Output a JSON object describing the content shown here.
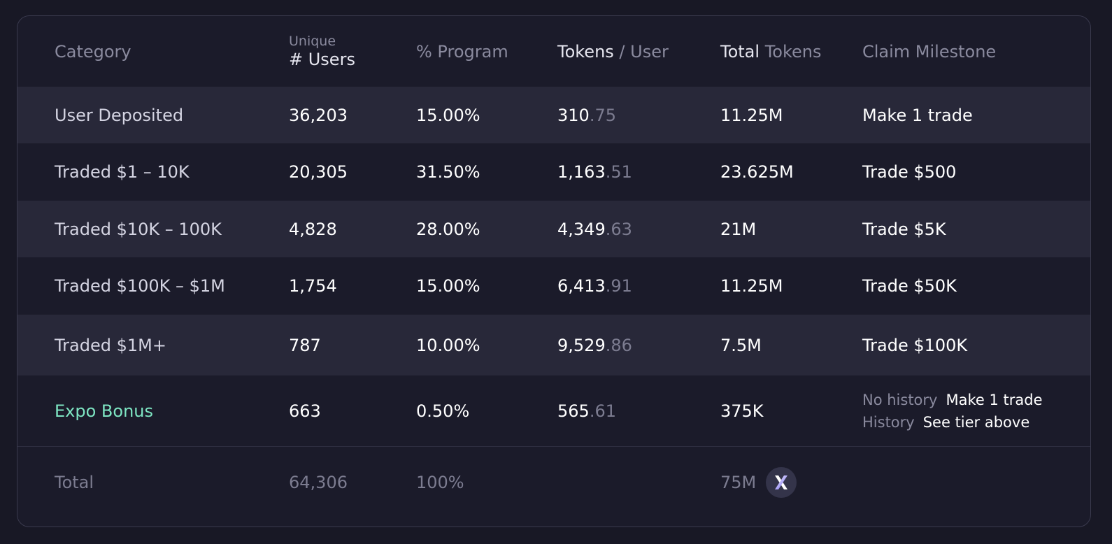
{
  "header": {
    "category": "Category",
    "users_small": "Unique",
    "users_big": "# Users",
    "program": "% Program",
    "tokens_user_a": "Tokens",
    "tokens_user_b": " / User",
    "total_tokens_a": "Total",
    "total_tokens_b": " Tokens",
    "milestone": "Claim Milestone"
  },
  "rows": [
    {
      "category": "User Deposited",
      "users": "36,203",
      "program": "15.00%",
      "tpu_int": "310",
      "tpu_dec": ".75",
      "total": "11.25M",
      "milestone": "Make 1 trade"
    },
    {
      "category": "Traded $1 – 10K",
      "users": "20,305",
      "program": "31.50%",
      "tpu_int": "1,163",
      "tpu_dec": ".51",
      "total": "23.625M",
      "milestone": "Trade $500"
    },
    {
      "category": "Traded $10K – 100K",
      "users": "4,828",
      "program": "28.00%",
      "tpu_int": "4,349",
      "tpu_dec": ".63",
      "total": "21M",
      "milestone": "Trade $5K"
    },
    {
      "category": "Traded $100K – $1M",
      "users": "1,754",
      "program": "15.00%",
      "tpu_int": "6,413",
      "tpu_dec": ".91",
      "total": "11.25M",
      "milestone": "Trade $50K"
    },
    {
      "category": "Traded $1M+",
      "users": "787",
      "program": "10.00%",
      "tpu_int": "9,529",
      "tpu_dec": ".86",
      "total": "7.5M",
      "milestone": "Trade $100K"
    }
  ],
  "bonus": {
    "category": "Expo Bonus",
    "users": "663",
    "program": "0.50%",
    "tpu_int": "565",
    "tpu_dec": ".61",
    "total": "375K",
    "ms_no_history_label": "No history",
    "ms_no_history_value": "Make 1 trade",
    "ms_history_label": "History",
    "ms_history_value": "See tier above"
  },
  "total": {
    "label": "Total",
    "users": "64,306",
    "program": "100%",
    "total": "75M",
    "icon": "x-token-icon"
  },
  "colors": {
    "background": "#181825",
    "row_alt": "#282839",
    "accent_green": "#7ee6c3",
    "icon_gradient": [
      "#ffffff",
      "#6b5cf0"
    ]
  }
}
